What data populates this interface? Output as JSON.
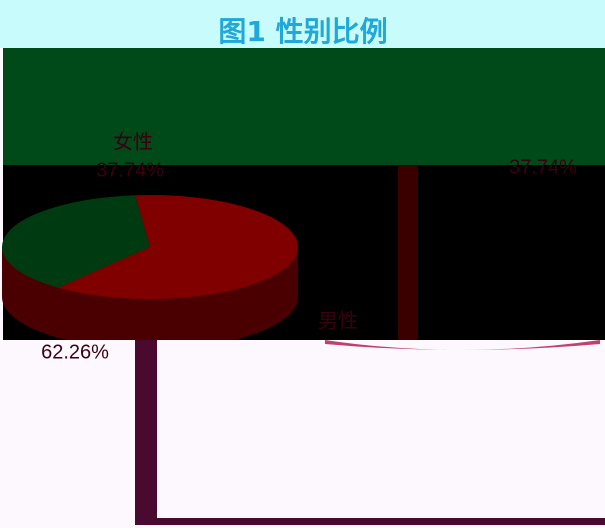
{
  "chart_data": {
    "type": "pie",
    "title": "图1  性别比例",
    "categories": [
      "女性",
      "男性"
    ],
    "values": [
      37.74,
      62.26
    ],
    "value_labels": [
      "37.74%",
      "62.26%"
    ],
    "colors": [
      "#003a10",
      "#800000"
    ]
  }
}
